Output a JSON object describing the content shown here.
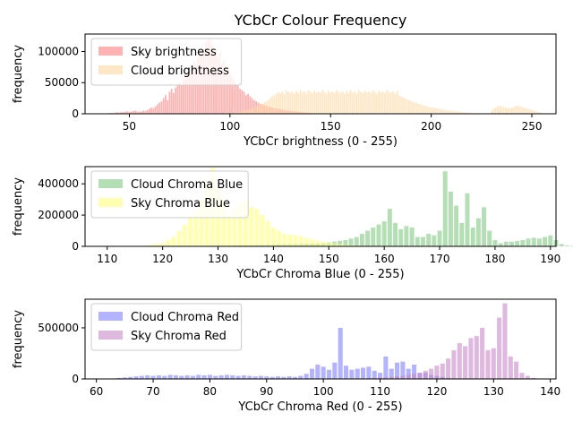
{
  "title": "YCbCr Colour Frequency",
  "chart_data": [
    {
      "type": "bar",
      "xlabel": "YCbCr brightness (0 - 255)",
      "ylabel": "frequency",
      "xlim": [
        28,
        262
      ],
      "ylim": [
        0,
        128000
      ],
      "xticks": [
        50,
        100,
        150,
        200,
        250
      ],
      "yticks": [
        0,
        50000,
        100000
      ],
      "legend_position": "top-left",
      "series": [
        {
          "name": "Sky brightness",
          "color": "#ff7f7f",
          "x_start": 40,
          "values": [
            1000,
            1500,
            1200,
            2000,
            2500,
            1800,
            3000,
            2500,
            3500,
            4000,
            3000,
            3500,
            4500,
            5000,
            4000,
            3000,
            3500,
            5000,
            4500,
            6000,
            8000,
            10000,
            9000,
            12000,
            15000,
            18000,
            20000,
            25000,
            30000,
            22000,
            35000,
            40000,
            33000,
            42000,
            48000,
            50000,
            45000,
            55000,
            62000,
            70000,
            68000,
            75000,
            85000,
            80000,
            90000,
            100000,
            95000,
            105000,
            115000,
            118000,
            120000,
            110000,
            100000,
            105000,
            90000,
            98000,
            80000,
            85000,
            70000,
            75000,
            65000,
            60000,
            55000,
            50000,
            45000,
            40000,
            38000,
            35000,
            30000,
            32000,
            28000,
            25000,
            22000,
            20000,
            18000,
            16000,
            15000,
            14000,
            13000,
            12000,
            11000,
            10000,
            9000,
            9000,
            8000,
            7000,
            7000,
            6000,
            6000,
            5000,
            5000,
            4000,
            4000,
            3500,
            3000,
            3000,
            2500,
            2000,
            2000,
            1500,
            1500,
            1000,
            1000,
            1000,
            500,
            500,
            500,
            300,
            300,
            200
          ]
        },
        {
          "name": "Cloud brightness",
          "color": "#ffd7a0",
          "x_start": 100,
          "values": [
            1000,
            1500,
            2000,
            2500,
            3000,
            3500,
            4000,
            5000,
            6000,
            7000,
            8000,
            9000,
            10000,
            12000,
            13000,
            15000,
            16000,
            18000,
            20000,
            22000,
            25000,
            28000,
            30000,
            32000,
            35000,
            33000,
            36000,
            32000,
            38000,
            35000,
            34000,
            36000,
            32000,
            37000,
            33000,
            38000,
            34000,
            36000,
            32000,
            38000,
            35000,
            33000,
            37000,
            34000,
            36000,
            33000,
            38000,
            35000,
            32000,
            37000,
            34000,
            36000,
            33000,
            38000,
            35000,
            34000,
            36000,
            32000,
            37000,
            33000,
            38000,
            34000,
            36000,
            32000,
            38000,
            35000,
            33000,
            37000,
            34000,
            36000,
            33000,
            38000,
            35000,
            32000,
            37000,
            34000,
            36000,
            33000,
            38000,
            35000,
            34000,
            36000,
            32000,
            37000,
            30000,
            28000,
            26000,
            25000,
            23000,
            22000,
            20000,
            19000,
            18000,
            17000,
            16000,
            15000,
            14000,
            13000,
            12000,
            11000,
            10000,
            10000,
            9000,
            9000,
            8000,
            7000,
            7000,
            6000,
            6000,
            5000,
            5000,
            4000,
            4000,
            3500,
            3000,
            3000,
            2500,
            2000,
            2000,
            1500,
            1500,
            1000,
            1000,
            800,
            600,
            500,
            400,
            300,
            200,
            100,
            5000,
            8000,
            10000,
            12000,
            13000,
            12000,
            11000,
            10000,
            9000,
            9000,
            10000,
            11000,
            12000,
            13000,
            12000,
            11000,
            10000,
            9000,
            8000,
            7000,
            6000,
            5000,
            4000,
            3000,
            2000,
            1000
          ]
        }
      ]
    },
    {
      "type": "bar",
      "xlabel": "YCbCr Chroma Blue (0 - 255)",
      "ylabel": "frequency",
      "xlim": [
        106,
        191
      ],
      "ylim": [
        0,
        510000
      ],
      "xticks": [
        110,
        120,
        130,
        140,
        150,
        160,
        170,
        180,
        190
      ],
      "yticks": [
        0,
        200000,
        400000
      ],
      "legend_position": "top-left",
      "series": [
        {
          "name": "Cloud Chroma Blue",
          "color": "#82c882",
          "x_start": 130,
          "values": [
            3000,
            4000,
            5000,
            5000,
            6000,
            6000,
            7000,
            8000,
            8000,
            9000,
            10000,
            11000,
            12000,
            13000,
            14000,
            15000,
            16000,
            17000,
            18000,
            20000,
            25000,
            30000,
            35000,
            40000,
            50000,
            60000,
            80000,
            100000,
            120000,
            140000,
            160000,
            240000,
            150000,
            110000,
            130000,
            120000,
            60000,
            60000,
            80000,
            70000,
            100000,
            480000,
            350000,
            260000,
            150000,
            340000,
            120000,
            180000,
            250000,
            100000,
            40000,
            20000,
            30000,
            30000,
            35000,
            40000,
            50000,
            55000,
            50000,
            60000,
            70000,
            40000,
            15000,
            5000,
            3000,
            2000
          ]
        },
        {
          "name": "Sky Chroma Blue",
          "color": "#ffff7f",
          "x_start": 117,
          "values": [
            5000,
            10000,
            15000,
            20000,
            40000,
            60000,
            100000,
            140000,
            200000,
            240000,
            300000,
            420000,
            500000,
            380000,
            300000,
            200000,
            240000,
            280000,
            300000,
            250000,
            240000,
            200000,
            160000,
            120000,
            100000,
            80000,
            75000,
            70000,
            65000,
            55000,
            45000,
            35000,
            30000,
            25000,
            20000,
            15000,
            10000,
            8000,
            5000,
            4000,
            3000,
            2000,
            1500,
            1000,
            800,
            500
          ]
        }
      ]
    },
    {
      "type": "bar",
      "xlabel": "YCbCr Chroma Red (0 - 255)",
      "ylabel": "frequency",
      "xlim": [
        58,
        141
      ],
      "ylim": [
        0,
        780000
      ],
      "xticks": [
        60,
        70,
        80,
        90,
        100,
        110,
        120,
        130,
        140
      ],
      "yticks": [
        0,
        500000
      ],
      "legend_position": "top-left",
      "series": [
        {
          "name": "Cloud Chroma Red",
          "color": "#8080ff",
          "x_start": 63,
          "values": [
            5000,
            10000,
            15000,
            20000,
            25000,
            30000,
            35000,
            30000,
            35000,
            30000,
            40000,
            35000,
            30000,
            35000,
            30000,
            40000,
            35000,
            40000,
            30000,
            35000,
            40000,
            35000,
            30000,
            35000,
            30000,
            25000,
            30000,
            25000,
            20000,
            25000,
            20000,
            25000,
            20000,
            30000,
            50000,
            100000,
            140000,
            120000,
            90000,
            160000,
            500000,
            130000,
            90000,
            100000,
            110000,
            120000,
            80000,
            60000,
            220000,
            100000,
            160000,
            170000,
            100000,
            140000,
            60000,
            60000,
            40000,
            30000,
            20000,
            10000,
            5000
          ]
        },
        {
          "name": "Sky Chroma Red",
          "color": "#c888c8",
          "x_start": 103,
          "values": [
            2000,
            3000,
            4000,
            5000,
            6000,
            8000,
            10000,
            12000,
            15000,
            20000,
            25000,
            30000,
            40000,
            50000,
            60000,
            80000,
            100000,
            130000,
            150000,
            200000,
            280000,
            350000,
            320000,
            400000,
            420000,
            500000,
            280000,
            300000,
            600000,
            740000,
            220000,
            170000,
            60000,
            30000,
            10000,
            3000,
            1000
          ]
        }
      ]
    }
  ]
}
